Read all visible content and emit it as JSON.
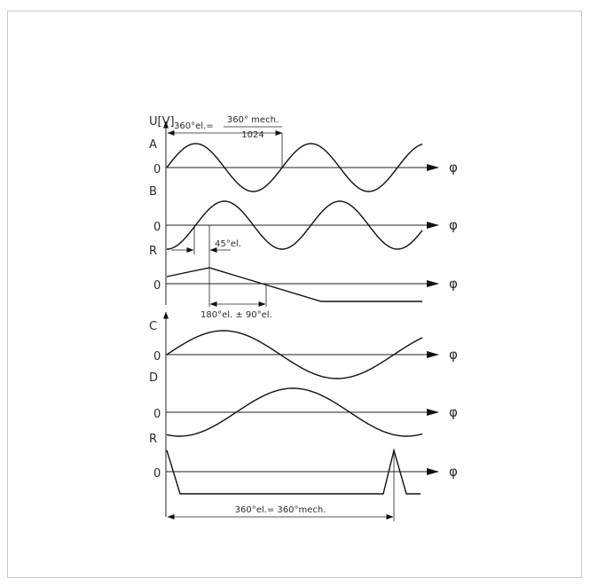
{
  "y_axis_label": "U[V]",
  "phase_symbol": "φ",
  "zero": "0",
  "upper": {
    "channels": [
      "A",
      "B",
      "R"
    ],
    "period_label_prefix": "360°el.=",
    "period_fraction_numerator": "360° mech.",
    "period_fraction_denominator": "1024",
    "phase_shift_label": "45°el.",
    "reference_label": "180°el. ± 90°el."
  },
  "lower": {
    "channels": [
      "C",
      "D",
      "R"
    ],
    "period_label": "360°el.= 360°mech."
  }
}
